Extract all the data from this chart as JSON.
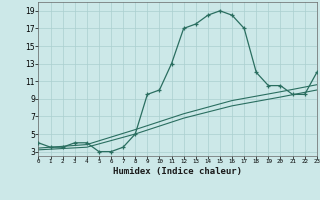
{
  "title": "",
  "xlabel": "Humidex (Indice chaleur)",
  "ylabel": "",
  "background_color": "#cce8e8",
  "line_color": "#2a6e60",
  "grid_color": "#aacfcf",
  "x_main": [
    0,
    1,
    2,
    3,
    4,
    5,
    6,
    7,
    8,
    9,
    10,
    11,
    12,
    13,
    14,
    15,
    16,
    17,
    18,
    19,
    20,
    21,
    22,
    23
  ],
  "y_main": [
    4,
    3.5,
    3.5,
    4,
    4,
    3,
    3,
    3.5,
    5,
    9.5,
    10,
    13,
    17,
    17.5,
    18.5,
    19,
    18.5,
    17,
    12,
    10.5,
    10.5,
    9.5,
    9.5,
    12
  ],
  "x_line2": [
    0,
    4,
    8,
    12,
    16,
    20,
    23
  ],
  "y_line2": [
    3.2,
    3.5,
    5.0,
    6.8,
    8.2,
    9.2,
    10.0
  ],
  "x_line3": [
    0,
    4,
    8,
    12,
    16,
    20,
    23
  ],
  "y_line3": [
    3.4,
    3.8,
    5.5,
    7.3,
    8.8,
    9.8,
    10.6
  ],
  "xlim": [
    0,
    23
  ],
  "ylim": [
    2.5,
    20
  ],
  "xticks": [
    0,
    1,
    2,
    3,
    4,
    5,
    6,
    7,
    8,
    9,
    10,
    11,
    12,
    13,
    14,
    15,
    16,
    17,
    18,
    19,
    20,
    21,
    22,
    23
  ],
  "yticks": [
    3,
    5,
    7,
    9,
    11,
    13,
    15,
    17,
    19
  ]
}
